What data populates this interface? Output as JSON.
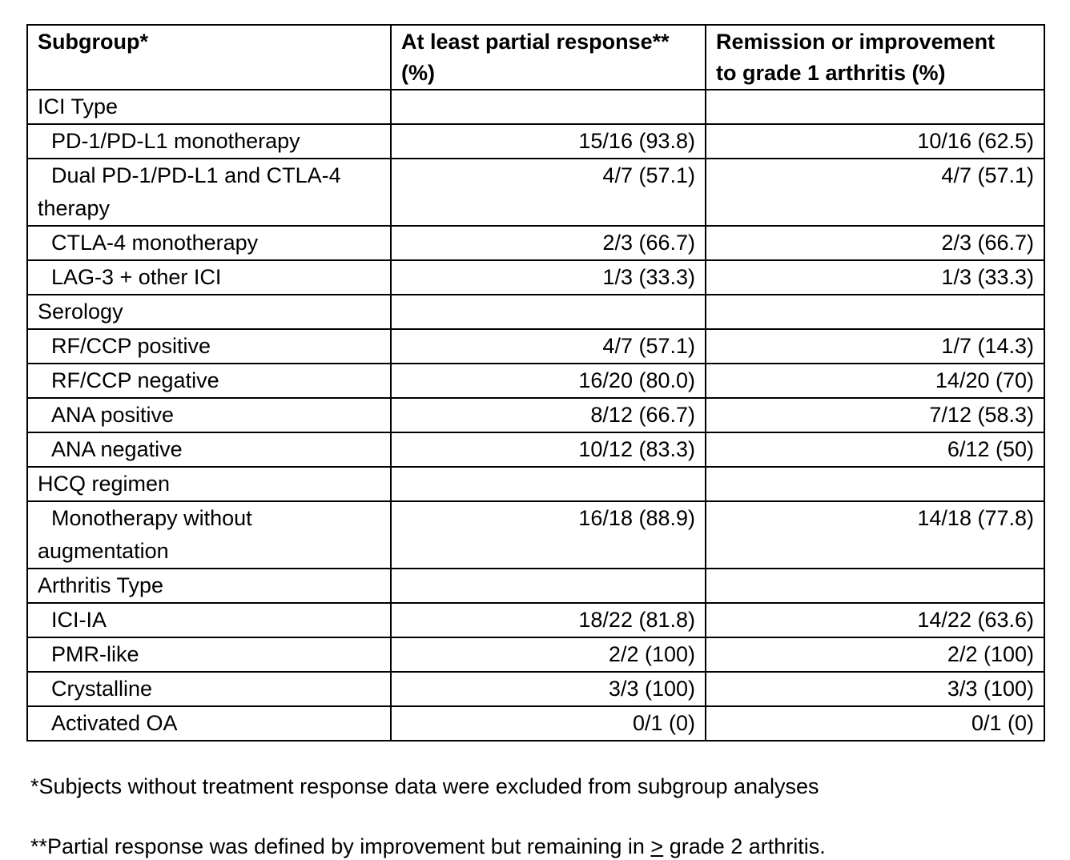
{
  "page": {
    "background": "#ffffff",
    "text_color": "#000000",
    "border_color": "#000000"
  },
  "table": {
    "columns": [
      "Subgroup*",
      "At least partial response** (%)",
      "Remission or improvement to grade 1 arthritis (%)"
    ],
    "rows": [
      {
        "section": true,
        "label": "ICI Type"
      },
      {
        "section": false,
        "label": "PD-1/PD-L1 monotherapy",
        "partial": "15/16 (93.8)",
        "remission": "10/16 (62.5)"
      },
      {
        "section": false,
        "label": "Dual PD-1/PD-L1 and CTLA-4 therapy",
        "partial": "4/7 (57.1)",
        "remission": "4/7 (57.1)"
      },
      {
        "section": false,
        "label": "CTLA-4 monotherapy",
        "partial": "2/3 (66.7)",
        "remission": "2/3 (66.7)"
      },
      {
        "section": false,
        "label": "LAG-3 + other ICI",
        "partial": "1/3 (33.3)",
        "remission": "1/3 (33.3)"
      },
      {
        "section": true,
        "label": "Serology"
      },
      {
        "section": false,
        "label": "RF/CCP positive",
        "partial": "4/7 (57.1)",
        "remission": "1/7 (14.3)"
      },
      {
        "section": false,
        "label": "RF/CCP negative",
        "partial": "16/20 (80.0)",
        "remission": "14/20 (70)"
      },
      {
        "section": false,
        "label": "ANA positive",
        "partial": "8/12 (66.7)",
        "remission": "7/12 (58.3)"
      },
      {
        "section": false,
        "label": "ANA negative",
        "partial": "10/12 (83.3)",
        "remission": "6/12 (50)"
      },
      {
        "section": true,
        "label": "HCQ regimen"
      },
      {
        "section": false,
        "label": "Monotherapy without augmentation",
        "partial": "16/18 (88.9)",
        "remission": "14/18 (77.8)"
      },
      {
        "section": true,
        "label": "Arthritis Type"
      },
      {
        "section": false,
        "label": "ICI-IA",
        "partial": "18/22 (81.8)",
        "remission": "14/22 (63.6)"
      },
      {
        "section": false,
        "label": "PMR-like",
        "partial": "2/2 (100)",
        "remission": "2/2 (100)"
      },
      {
        "section": false,
        "label": "Crystalline",
        "partial": "3/3 (100)",
        "remission": "3/3 (100)"
      },
      {
        "section": false,
        "label": "Activated OA",
        "partial": "0/1 (0)",
        "remission": "0/1 (0)"
      }
    ]
  },
  "footnotes": {
    "subjects_note": "*Subjects without treatment response data were excluded from subgroup analyses",
    "partial_note_before": "**Partial response was defined by improvement but remaining in ",
    "partial_note_symbol": ">",
    "partial_note_after": " grade 2 arthritis."
  }
}
